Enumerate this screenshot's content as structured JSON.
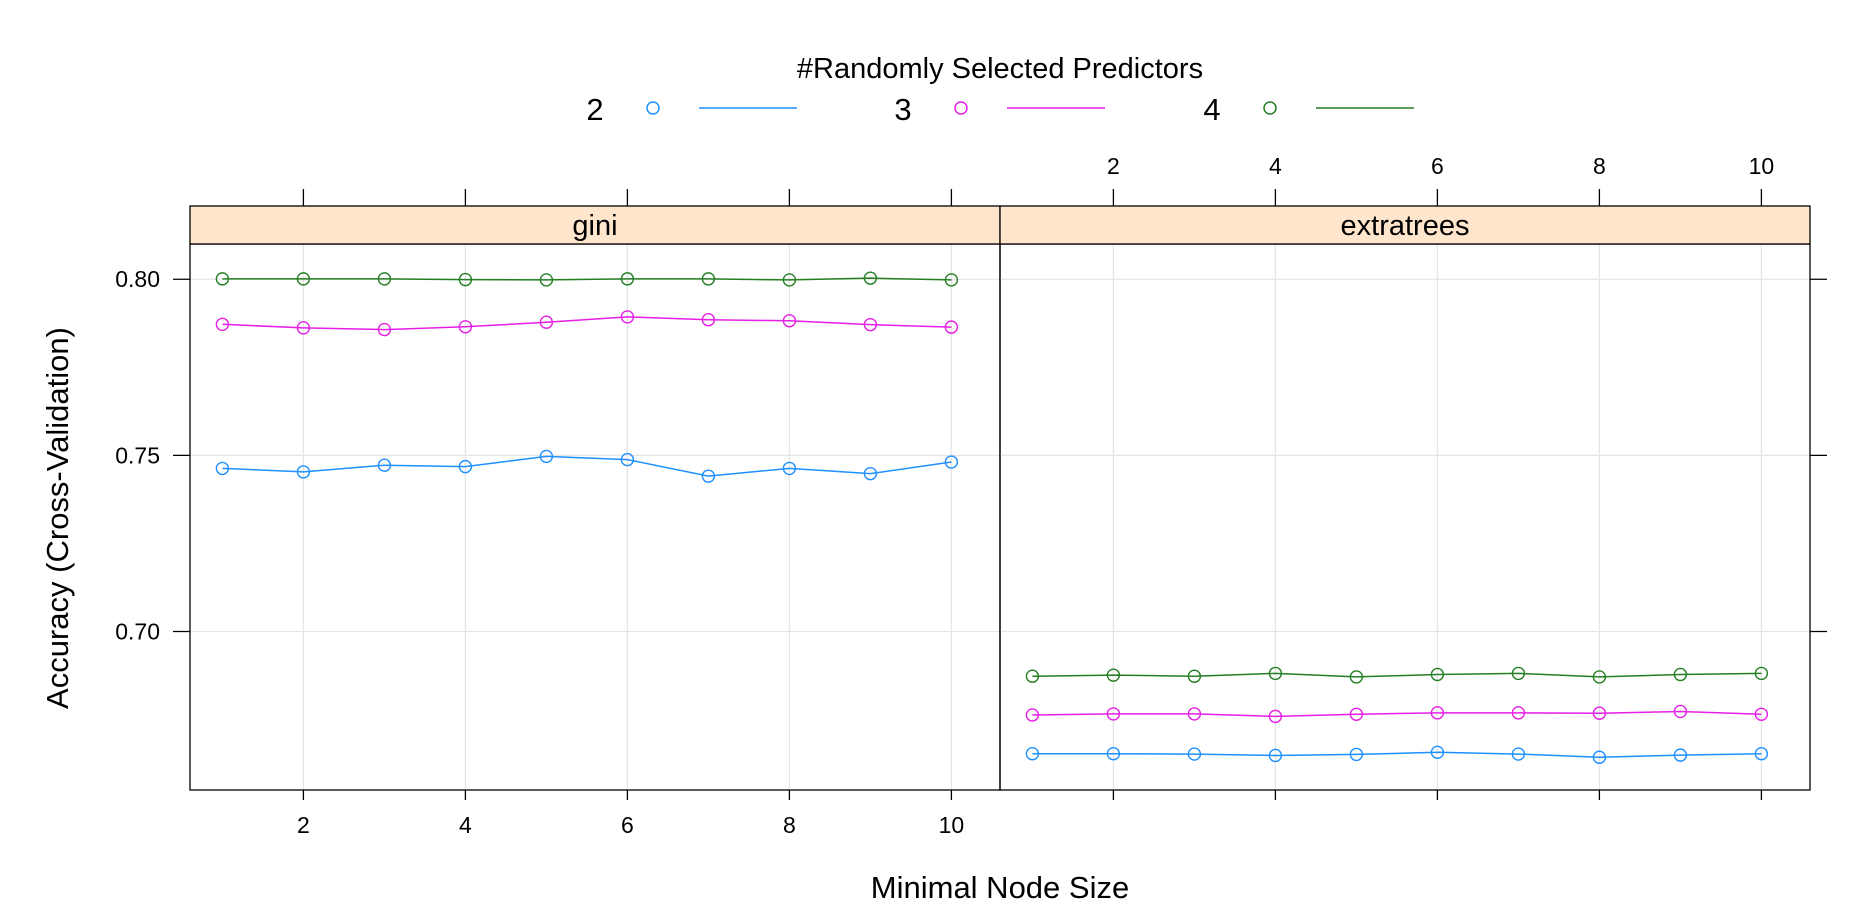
{
  "chart_data": {
    "type": "line",
    "legend": {
      "title": "#Randomly Selected Predictors",
      "placement": "top",
      "entries": [
        {
          "label": "2",
          "color": "#1E90FF"
        },
        {
          "label": "3",
          "color": "#E61EE6"
        },
        {
          "label": "4",
          "color": "#237F23"
        }
      ]
    },
    "xlabel": "Minimal Node Size",
    "ylabel": "Accuracy (Cross-Validation)",
    "xlim": [
      0.6,
      10.6
    ],
    "ylim": [
      0.655,
      0.81
    ],
    "x_ticks": [
      2,
      4,
      6,
      8,
      10
    ],
    "x_tick_labels": [
      "2",
      "4",
      "6",
      "8",
      "10"
    ],
    "y_ticks": [
      0.7,
      0.75,
      0.8
    ],
    "y_tick_labels": [
      "0.70",
      "0.75",
      "0.80"
    ],
    "grid": true,
    "x": [
      1,
      2,
      3,
      4,
      5,
      6,
      7,
      8,
      9,
      10
    ],
    "panels": [
      {
        "label": "gini",
        "series": [
          {
            "legend_label": "2",
            "values": [
              0.7463,
              0.7453,
              0.7472,
              0.7468,
              0.7497,
              0.7488,
              0.7441,
              0.7463,
              0.7448,
              0.7481
            ]
          },
          {
            "legend_label": "3",
            "values": [
              0.7872,
              0.7862,
              0.7857,
              0.7865,
              0.7878,
              0.7893,
              0.7885,
              0.7882,
              0.7871,
              0.7864
            ]
          },
          {
            "legend_label": "4",
            "values": [
              0.8001,
              0.8001,
              0.8001,
              0.7999,
              0.7998,
              0.8001,
              0.8001,
              0.7998,
              0.8003,
              0.7998
            ]
          }
        ]
      },
      {
        "label": "extratrees",
        "series": [
          {
            "legend_label": "2",
            "values": [
              0.6653,
              0.6653,
              0.6652,
              0.6648,
              0.6651,
              0.6657,
              0.6652,
              0.6643,
              0.6649,
              0.6653
            ]
          },
          {
            "legend_label": "3",
            "values": [
              0.6763,
              0.6766,
              0.6766,
              0.6759,
              0.6765,
              0.6769,
              0.6769,
              0.6768,
              0.6773,
              0.6765
            ]
          },
          {
            "legend_label": "4",
            "values": [
              0.6873,
              0.6876,
              0.6873,
              0.6881,
              0.6871,
              0.6878,
              0.6881,
              0.6871,
              0.6878,
              0.6881
            ]
          }
        ]
      }
    ]
  }
}
